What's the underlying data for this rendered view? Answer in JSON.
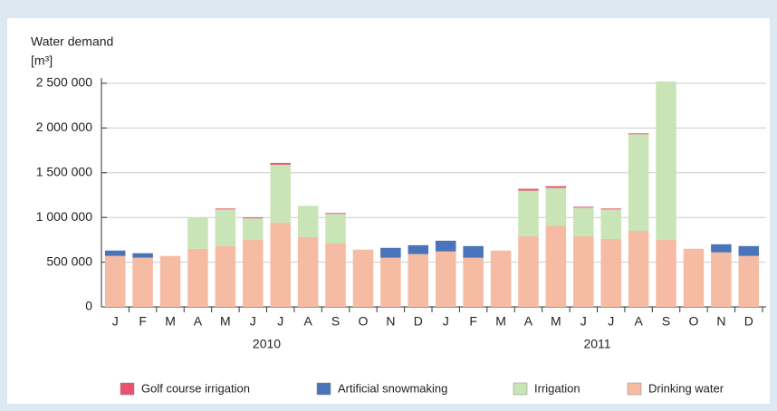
{
  "chart_data": {
    "type": "stacked_bar",
    "y_label": "Water demand",
    "y_unit": "[m³]",
    "categories": [
      "J",
      "F",
      "M",
      "A",
      "M",
      "J",
      "J",
      "A",
      "S",
      "O",
      "N",
      "D",
      "J",
      "F",
      "M",
      "A",
      "M",
      "J",
      "J",
      "A",
      "S",
      "O",
      "N",
      "D"
    ],
    "year_labels": [
      "2010",
      "2011"
    ],
    "series": [
      {
        "name": "Drinking water",
        "color": "#f5bba3",
        "values": [
          570000,
          550000,
          570000,
          650000,
          680000,
          750000,
          940000,
          780000,
          710000,
          640000,
          550000,
          590000,
          620000,
          550000,
          630000,
          790000,
          910000,
          790000,
          760000,
          850000,
          750000,
          650000,
          610000,
          570000
        ]
      },
      {
        "name": "Irrigation",
        "color": "#c9e4b6",
        "values": [
          0,
          0,
          0,
          350000,
          410000,
          240000,
          650000,
          350000,
          330000,
          0,
          0,
          0,
          0,
          0,
          0,
          510000,
          420000,
          320000,
          330000,
          1080000,
          1770000,
          0,
          0,
          0
        ]
      },
      {
        "name": "Artificial snowmaking",
        "color": "#4a74b9",
        "values": [
          60000,
          50000,
          0,
          0,
          0,
          0,
          0,
          0,
          0,
          0,
          110000,
          100000,
          120000,
          130000,
          0,
          0,
          0,
          0,
          0,
          0,
          0,
          0,
          90000,
          110000
        ]
      },
      {
        "name": "Golf course irrigation",
        "color": "#e8536e",
        "values": [
          0,
          0,
          0,
          0,
          10000,
          10000,
          20000,
          0,
          10000,
          0,
          0,
          0,
          0,
          0,
          0,
          20000,
          20000,
          10000,
          10000,
          10000,
          0,
          0,
          0,
          0
        ]
      }
    ],
    "ylim": [
      0,
      2500000
    ],
    "yticks": [
      0,
      {
        "value": 500000,
        "label": "500 000"
      },
      {
        "value": 1000000,
        "label": "1 000 000"
      },
      {
        "value": 1500000,
        "label": "1 500 000"
      },
      {
        "value": 2000000,
        "label": "2 000 000"
      },
      {
        "value": 2500000,
        "label": "2 500 000"
      }
    ],
    "grid": true
  }
}
